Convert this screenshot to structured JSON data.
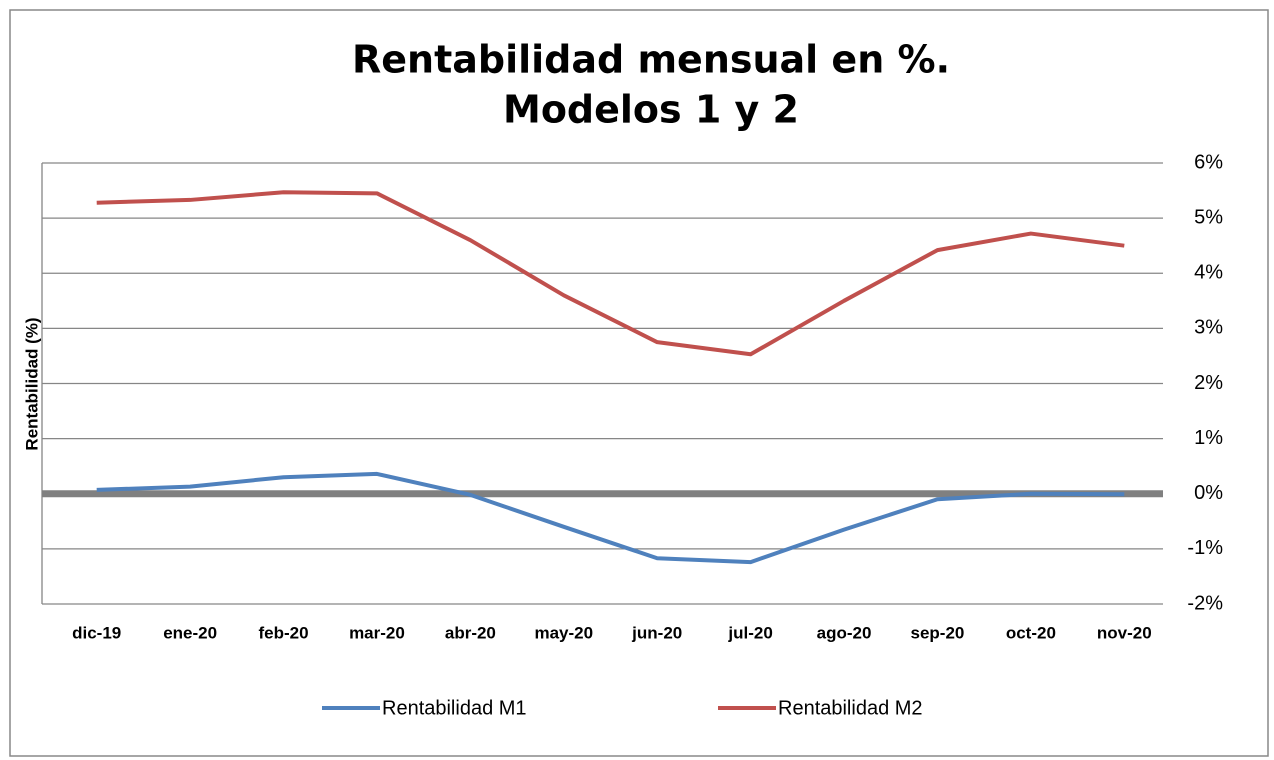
{
  "chart_data": {
    "type": "line",
    "title": [
      "Rentabilidad mensual en %.",
      "Modelos 1 y 2"
    ],
    "y_axis_label": "Rentabilidad (%)",
    "categories": [
      "dic-19",
      "ene-20",
      "feb-20",
      "mar-20",
      "abr-20",
      "may-20",
      "jun-20",
      "jul-20",
      "ago-20",
      "sep-20",
      "oct-20",
      "nov-20"
    ],
    "series": [
      {
        "name": "Rentabilidad M1",
        "color": "#4f81bd",
        "values": [
          0.07,
          0.13,
          0.3,
          0.36,
          -0.02,
          -0.6,
          -1.17,
          -1.24,
          -0.65,
          -0.1,
          0.0,
          -0.01
        ]
      },
      {
        "name": "Rentabilidad M2",
        "color": "#c0504d",
        "values": [
          5.28,
          5.33,
          5.47,
          5.45,
          4.6,
          3.6,
          2.75,
          2.53,
          3.5,
          4.42,
          4.72,
          4.5
        ]
      }
    ],
    "ylim": [
      -2,
      6
    ],
    "yticks": [
      {
        "value": -2,
        "label": "-2%"
      },
      {
        "value": -1,
        "label": "-1%"
      },
      {
        "value": 0,
        "label": "0%"
      },
      {
        "value": 1,
        "label": "1%"
      },
      {
        "value": 2,
        "label": "2%"
      },
      {
        "value": 3,
        "label": "3%"
      },
      {
        "value": 4,
        "label": "4%"
      },
      {
        "value": 5,
        "label": "5%"
      },
      {
        "value": 6,
        "label": "6%"
      }
    ],
    "y_axis_side": "right",
    "grid": true,
    "legend": "bottom"
  }
}
